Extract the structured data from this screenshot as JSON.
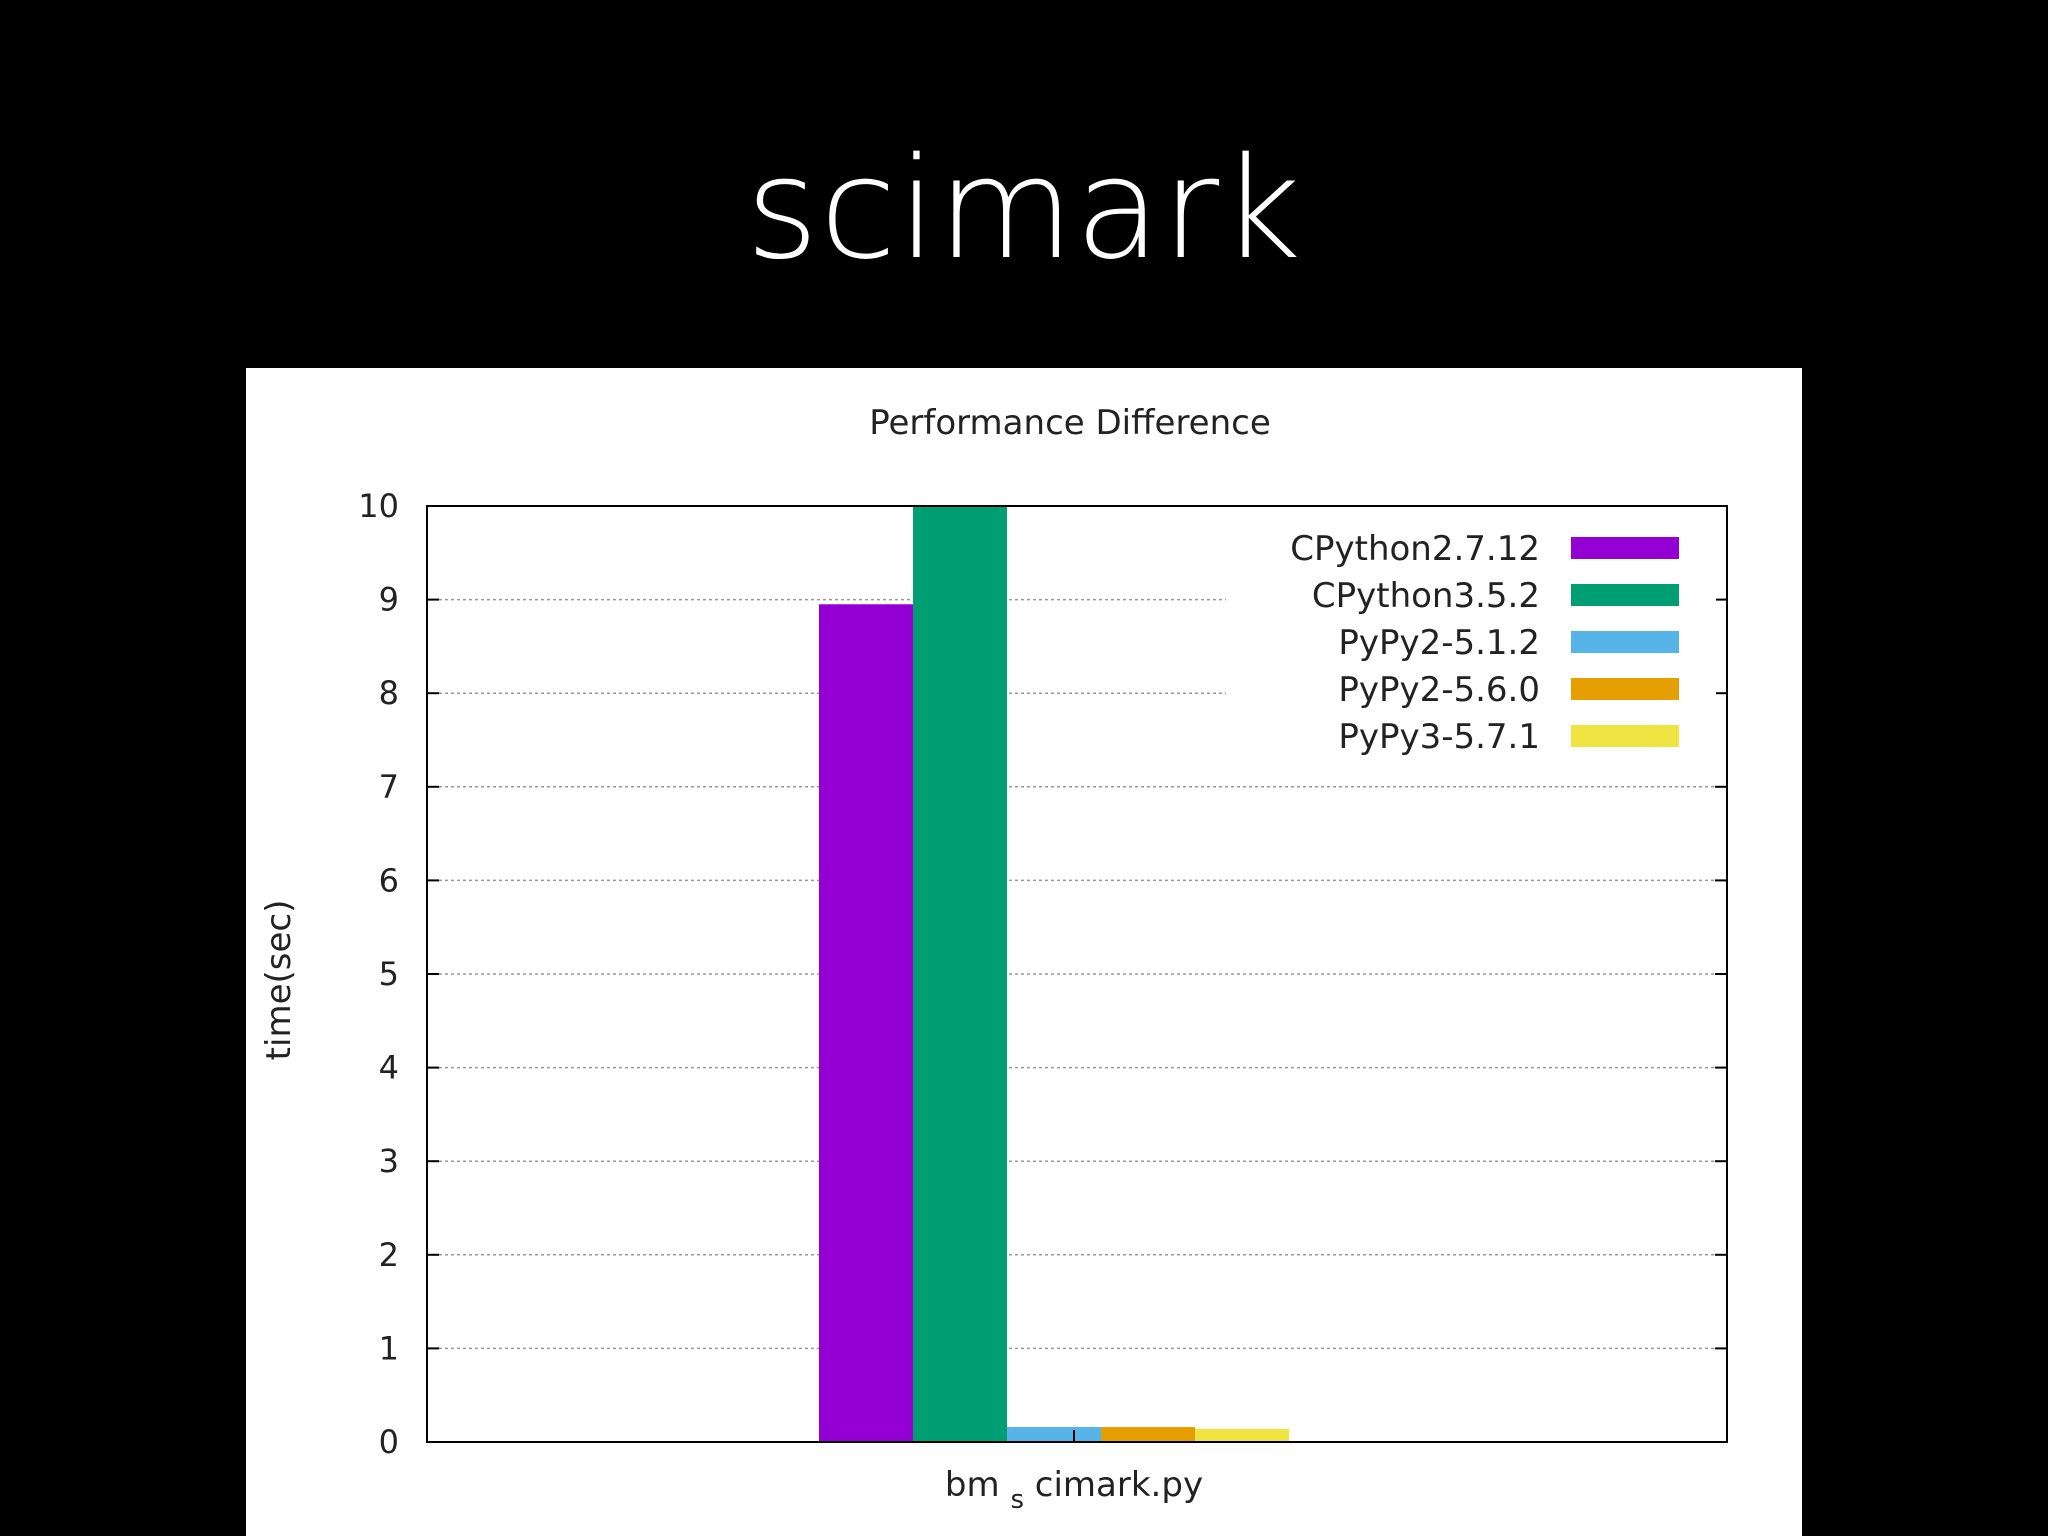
{
  "slide": {
    "title": "scimark"
  },
  "chart_data": {
    "type": "bar",
    "title": "Performance Difference",
    "xlabel": "",
    "ylabel": "time(sec)",
    "ylim": [
      0,
      10
    ],
    "yticks": [
      "0",
      "1",
      "2",
      "3",
      "4",
      "5",
      "6",
      "7",
      "8",
      "9",
      "10"
    ],
    "categories": [
      "bm_scimark.py"
    ],
    "category_label": {
      "main": "bm",
      "sub": "s",
      "rest": "cimark.py"
    },
    "grid": true,
    "legend_position": "top-right",
    "series": [
      {
        "name": "CPython2.7.12",
        "color": "#9400d3",
        "values": [
          8.95
        ]
      },
      {
        "name": "CPython3.5.2",
        "color": "#009e73",
        "values": [
          10.0
        ]
      },
      {
        "name": "PyPy2-5.1.2",
        "color": "#56b4e9",
        "values": [
          0.16
        ]
      },
      {
        "name": "PyPy2-5.6.0",
        "color": "#e69f00",
        "values": [
          0.16
        ]
      },
      {
        "name": "PyPy3-5.7.1",
        "color": "#f0e442",
        "values": [
          0.14
        ]
      }
    ]
  }
}
